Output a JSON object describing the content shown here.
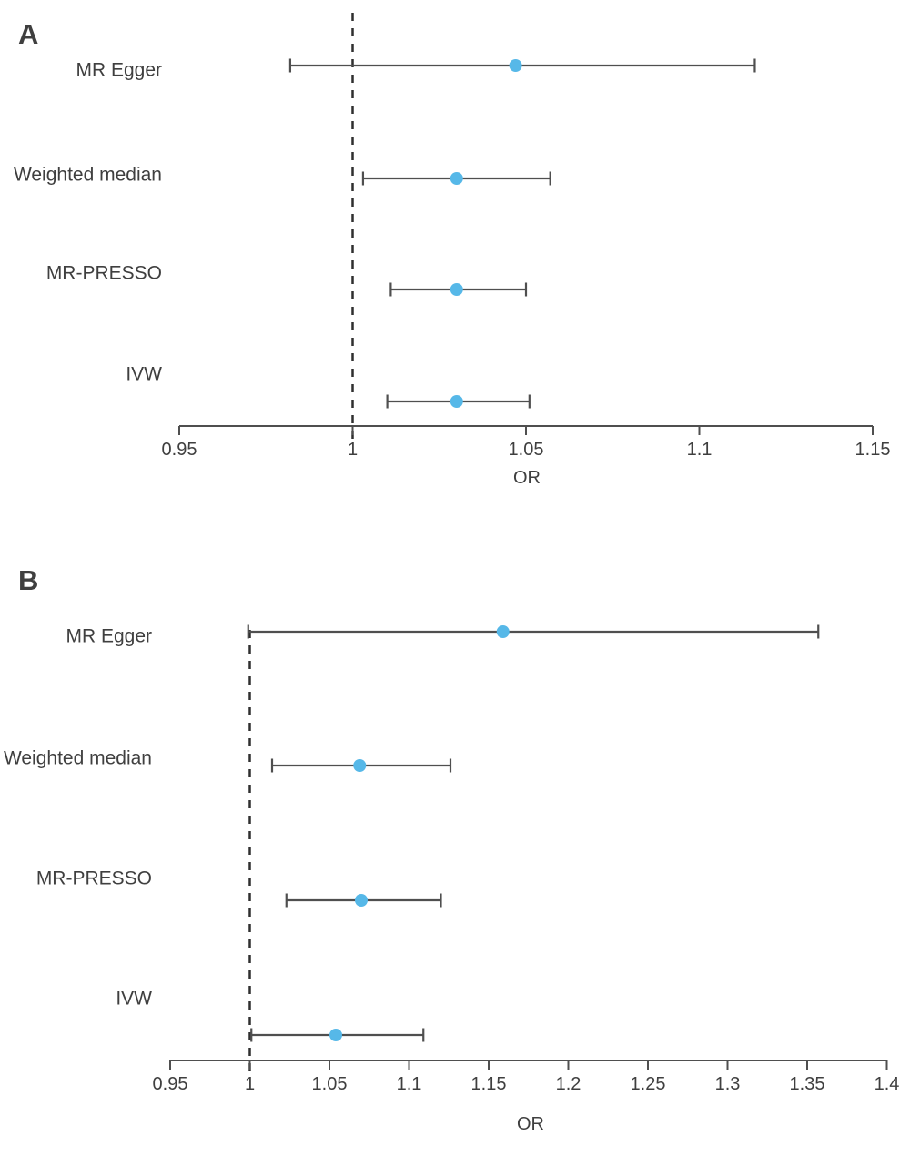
{
  "figure": {
    "background": "#ffffff",
    "text_color": "#3f3f3f",
    "line_color": "#4f4f4f",
    "ref_line_color": "#2f2f2f",
    "point_color": "#56b8e8"
  },
  "chart_data": [
    {
      "type": "scatter",
      "subtype": "forest-plot",
      "panel": "A",
      "xlabel": "OR",
      "xlim": [
        0.95,
        1.15
      ],
      "xticks": [
        0.95,
        1,
        1.05,
        1.1,
        1.15
      ],
      "xtick_labels": [
        "0.95",
        "1",
        "1.05",
        "1.1",
        "1.15"
      ],
      "reference_line": 1,
      "grid": false,
      "legend": "none",
      "rows": [
        {
          "label": "MR Egger",
          "or": 1.047,
          "ci_low": 0.982,
          "ci_high": 1.116
        },
        {
          "label": "Weighted median",
          "or": 1.03,
          "ci_low": 1.003,
          "ci_high": 1.057
        },
        {
          "label": "MR-PRESSO",
          "or": 1.03,
          "ci_low": 1.011,
          "ci_high": 1.05
        },
        {
          "label": "IVW",
          "or": 1.03,
          "ci_low": 1.01,
          "ci_high": 1.051
        }
      ]
    },
    {
      "type": "scatter",
      "subtype": "forest-plot",
      "panel": "B",
      "xlabel": "OR",
      "xlim": [
        0.95,
        1.4
      ],
      "xticks": [
        0.95,
        1,
        1.05,
        1.1,
        1.15,
        1.2,
        1.25,
        1.3,
        1.35,
        1.4
      ],
      "xtick_labels": [
        "0.95",
        "1",
        "1.05",
        "1.1",
        "1.15",
        "1.2",
        "1.25",
        "1.3",
        "1.35",
        "1.4"
      ],
      "reference_line": 1,
      "grid": false,
      "legend": "none",
      "rows": [
        {
          "label": "MR Egger",
          "or": 1.159,
          "ci_low": 0.999,
          "ci_high": 1.357
        },
        {
          "label": "Weighted median",
          "or": 1.069,
          "ci_low": 1.014,
          "ci_high": 1.126
        },
        {
          "label": "MR-PRESSO",
          "or": 1.07,
          "ci_low": 1.023,
          "ci_high": 1.12
        },
        {
          "label": "IVW",
          "or": 1.054,
          "ci_low": 1.001,
          "ci_high": 1.109
        }
      ]
    }
  ]
}
